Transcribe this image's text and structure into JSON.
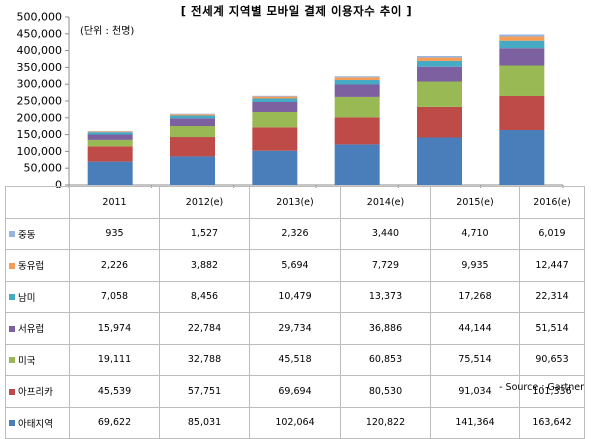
{
  "title": "[ 전세계 지역별 모바일 결제 이용자수 추이 ]",
  "unit_note": "(단위 : 천명)",
  "source": "- Source : Gartner",
  "chart_data": {
    "type": "bar",
    "stacked": true,
    "title": "[ 전세계 지역별 모바일 결제 이용자수 추이 ]",
    "categories": [
      "2011",
      "2012(e)",
      "2013(e)",
      "2014(e)",
      "2015(e)",
      "2016(e)"
    ],
    "ylim": [
      0,
      500000
    ],
    "yticks": [
      0,
      50000,
      100000,
      150000,
      200000,
      250000,
      300000,
      350000,
      400000,
      450000,
      500000
    ],
    "ytick_labels": [
      "0",
      "50,000",
      "100,000",
      "150,000",
      "200,000",
      "250,000",
      "300,000",
      "350,000",
      "400,000",
      "450,000",
      "500,000"
    ],
    "grid": false,
    "legend": "table-rows",
    "series": [
      {
        "name": "아태지역",
        "color": "#4a7ebb",
        "values": [
          69622,
          85031,
          102064,
          120822,
          141364,
          163642
        ],
        "labels": [
          "69,622",
          "85,031",
          "102,064",
          "120,822",
          "141,364",
          "163,642"
        ]
      },
      {
        "name": "아프리카",
        "color": "#be4b48",
        "values": [
          45539,
          57751,
          69694,
          80530,
          91034,
          101336
        ],
        "labels": [
          "45,539",
          "57,751",
          "69,694",
          "80,530",
          "91,034",
          "101,336"
        ]
      },
      {
        "name": "미국",
        "color": "#98b954",
        "values": [
          19111,
          32788,
          45518,
          60853,
          75514,
          90653
        ],
        "labels": [
          "19,111",
          "32,788",
          "45,518",
          "60,853",
          "75,514",
          "90,653"
        ]
      },
      {
        "name": "서유럽",
        "color": "#7d60a0",
        "values": [
          15974,
          22784,
          29734,
          36886,
          44144,
          51514
        ],
        "labels": [
          "15,974",
          "22,784",
          "29,734",
          "36,886",
          "44,144",
          "51,514"
        ]
      },
      {
        "name": "남미",
        "color": "#46aac5",
        "values": [
          7058,
          8456,
          10479,
          13373,
          17268,
          22314
        ],
        "labels": [
          "7,058",
          "8,456",
          "10,479",
          "13,373",
          "17,268",
          "22,314"
        ]
      },
      {
        "name": "동유럽",
        "color": "#f59d56",
        "values": [
          2226,
          3882,
          5694,
          7729,
          9935,
          12447
        ],
        "labels": [
          "2,226",
          "3,882",
          "5,694",
          "7,729",
          "9,935",
          "12,447"
        ]
      },
      {
        "name": "중동",
        "color": "#97b5e1",
        "values": [
          935,
          1527,
          2326,
          3440,
          4710,
          6019
        ],
        "labels": [
          "935",
          "1,527",
          "2,326",
          "3,440",
          "4,710",
          "6,019"
        ]
      }
    ]
  }
}
